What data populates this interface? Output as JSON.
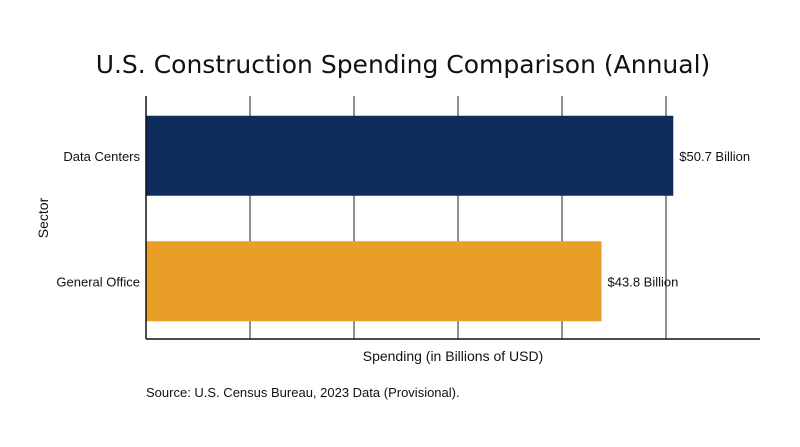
{
  "chart_data": {
    "type": "bar",
    "orientation": "horizontal",
    "title": "U.S. Construction Spending Comparison (Annual)",
    "xlabel": "Spending (in Billions of USD)",
    "ylabel": "Sector",
    "categories": [
      "Data Centers",
      "General Office"
    ],
    "values": [
      50.7,
      43.8
    ],
    "data_labels": [
      "$50.7 Billion",
      "$43.8 Billion"
    ],
    "colors": [
      "#0f2d5c",
      "#e89e27"
    ],
    "xlim": [
      0,
      60
    ],
    "x_gridlines": [
      10,
      20,
      30,
      40,
      50
    ],
    "x_tick_labels_shown": false,
    "grid": true,
    "legend": "none",
    "source": "Source: U.S. Census Bureau, 2023 Data (Provisional)."
  }
}
